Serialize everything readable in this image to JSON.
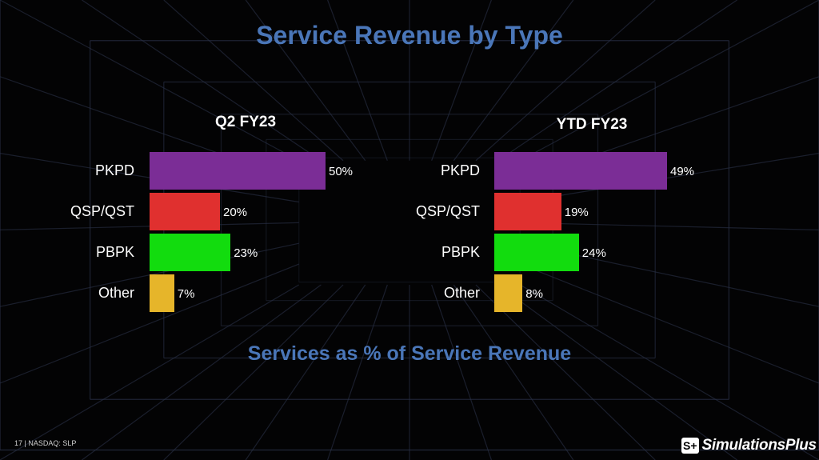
{
  "slide": {
    "title": "Service Revenue by Type",
    "subtitle": "Services as % of Service Revenue",
    "footer": "17 | NASDAQ: SLP",
    "logo": {
      "mark": "S+",
      "text": "SimulationsPlus"
    }
  },
  "chart_data": [
    {
      "type": "bar",
      "orientation": "horizontal",
      "title": "Q2 FY23",
      "categories": [
        "PKPD",
        "QSP/QST",
        "PBPK",
        "Other"
      ],
      "values": [
        50,
        20,
        23,
        7
      ],
      "value_labels": [
        "50%",
        "20%",
        "23%",
        "7%"
      ],
      "colors": [
        "#7b2d96",
        "#e0302f",
        "#12dc0e",
        "#e6b52a"
      ],
      "xlim": [
        0,
        50
      ]
    },
    {
      "type": "bar",
      "orientation": "horizontal",
      "title": "YTD FY23",
      "categories": [
        "PKPD",
        "QSP/QST",
        "PBPK",
        "Other"
      ],
      "values": [
        49,
        19,
        24,
        8
      ],
      "value_labels": [
        "49%",
        "19%",
        "24%",
        "8%"
      ],
      "colors": [
        "#7b2d96",
        "#e0302f",
        "#12dc0e",
        "#e6b52a"
      ],
      "xlim": [
        0,
        49
      ]
    }
  ]
}
